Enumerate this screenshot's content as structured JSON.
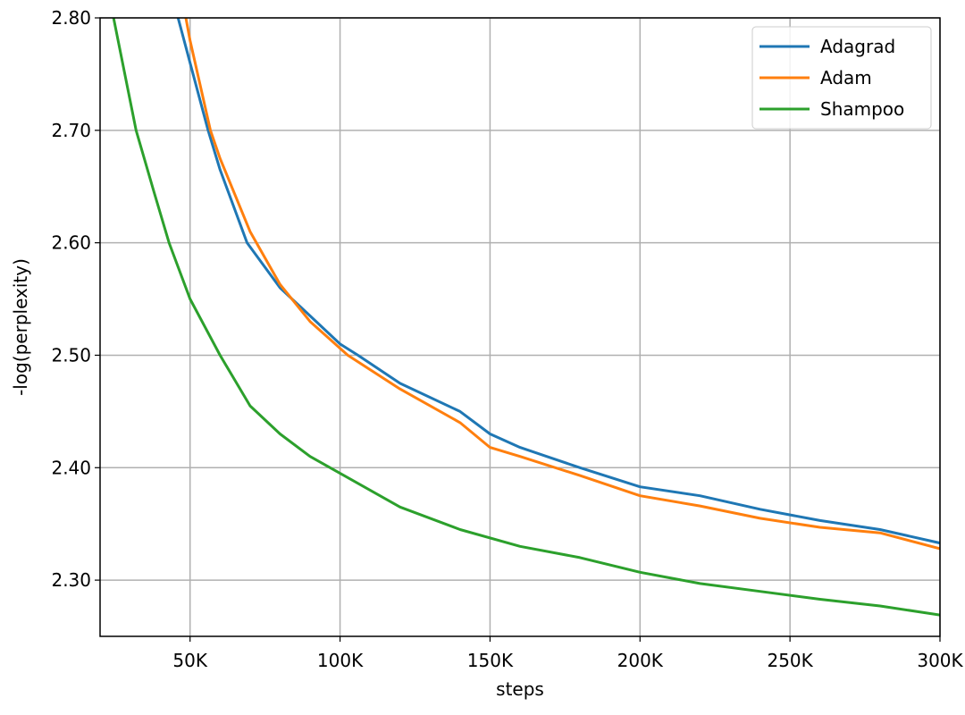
{
  "chart_data": {
    "type": "line",
    "title": "",
    "xlabel": "steps",
    "ylabel": "-log(perplexity)",
    "xlim": [
      20000,
      300000
    ],
    "ylim": [
      2.25,
      2.8
    ],
    "xticks": [
      50000,
      100000,
      150000,
      200000,
      250000,
      300000
    ],
    "xtick_labels": [
      "50K",
      "100K",
      "150K",
      "200K",
      "250K",
      "300K"
    ],
    "yticks": [
      2.3,
      2.4,
      2.5,
      2.6,
      2.7,
      2.8
    ],
    "ytick_labels": [
      "2.30",
      "2.40",
      "2.50",
      "2.60",
      "2.70",
      "2.80"
    ],
    "grid": true,
    "legend_position": "top-right",
    "series": [
      {
        "name": "Adagrad",
        "color": "#1f77b4",
        "x": [
          46000,
          50000,
          56000,
          60000,
          69000,
          80000,
          90000,
          100000,
          106000,
          120000,
          140000,
          150000,
          160000,
          180000,
          200000,
          220000,
          240000,
          260000,
          280000,
          300000
        ],
        "y": [
          2.8,
          2.76,
          2.7,
          2.665,
          2.6,
          2.56,
          2.535,
          2.51,
          2.5,
          2.475,
          2.45,
          2.43,
          2.418,
          2.4,
          2.383,
          2.375,
          2.363,
          2.353,
          2.345,
          2.333
        ]
      },
      {
        "name": "Adam",
        "color": "#ff7f0e",
        "x": [
          48600,
          50000,
          56800,
          60000,
          70000,
          80000,
          90000,
          102600,
          120000,
          140000,
          150000,
          160000,
          180000,
          200000,
          220000,
          240000,
          260000,
          280000,
          300000
        ],
        "y": [
          2.8,
          2.78,
          2.7,
          2.675,
          2.61,
          2.563,
          2.53,
          2.5,
          2.47,
          2.44,
          2.418,
          2.41,
          2.393,
          2.375,
          2.366,
          2.355,
          2.347,
          2.342,
          2.328
        ]
      },
      {
        "name": "Shampoo",
        "color": "#2ca02c",
        "x": [
          24500,
          32000,
          38000,
          43000,
          50000,
          60000,
          70000,
          80000,
          90000,
          100000,
          120000,
          140000,
          160000,
          180000,
          200000,
          220000,
          240000,
          260000,
          280000,
          300000
        ],
        "y": [
          2.8,
          2.7,
          2.645,
          2.6,
          2.55,
          2.5,
          2.455,
          2.43,
          2.41,
          2.395,
          2.365,
          2.345,
          2.33,
          2.32,
          2.307,
          2.297,
          2.29,
          2.283,
          2.277,
          2.269
        ]
      }
    ]
  }
}
